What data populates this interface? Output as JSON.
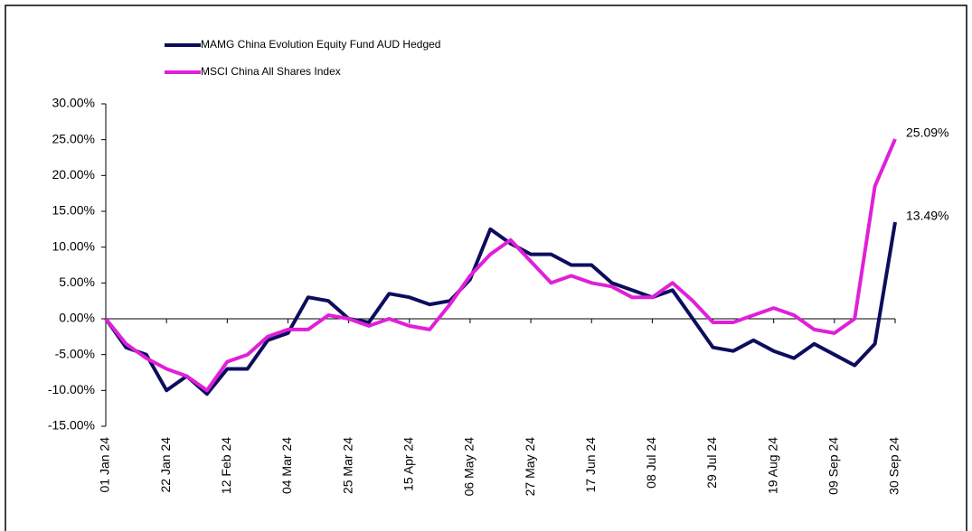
{
  "chart_data": {
    "type": "line",
    "x": [
      "01 Jan 24",
      "08 Jan 24",
      "15 Jan 24",
      "22 Jan 24",
      "29 Jan 24",
      "05 Feb 24",
      "12 Feb 24",
      "19 Feb 24",
      "26 Feb 24",
      "04 Mar 24",
      "11 Mar 24",
      "18 Mar 24",
      "25 Mar 24",
      "01 Apr 24",
      "08 Apr 24",
      "15 Apr 24",
      "22 Apr 24",
      "29 Apr 24",
      "06 May 24",
      "13 May 24",
      "20 May 24",
      "27 May 24",
      "03 Jun 24",
      "10 Jun 24",
      "17 Jun 24",
      "24 Jun 24",
      "01 Jul 24",
      "08 Jul 24",
      "15 Jul 24",
      "22 Jul 24",
      "29 Jul 24",
      "05 Aug 24",
      "12 Aug 24",
      "19 Aug 24",
      "26 Aug 24",
      "02 Sep 24",
      "09 Sep 24",
      "16 Sep 24",
      "23 Sep 24",
      "30 Sep 24"
    ],
    "series": [
      {
        "name": "MAMG China Evolution Equity Fund AUD Hedged",
        "color": "#0d0d5e",
        "values": [
          0,
          -4,
          -5,
          -10,
          -8,
          -10.5,
          -7,
          -7,
          -3,
          -2,
          3,
          2.5,
          0,
          -0.5,
          3.5,
          3,
          2,
          2.5,
          5.5,
          12.5,
          10.5,
          9,
          9,
          7.5,
          7.5,
          5,
          4,
          3,
          4,
          0,
          -4,
          -4.5,
          -3,
          -4.5,
          -5.5,
          -3.5,
          -5,
          -6.5,
          -3.5,
          13.49
        ],
        "value_labels": [
          null,
          null,
          null,
          null,
          null,
          null,
          null,
          null,
          null,
          null,
          null,
          null,
          null,
          null,
          null,
          null,
          null,
          null,
          null,
          null,
          null,
          null,
          null,
          null,
          null,
          null,
          null,
          null,
          null,
          null,
          null,
          null,
          null,
          null,
          null,
          null,
          null,
          null,
          null,
          "13.49%"
        ]
      },
      {
        "name": "MSCI China All Shares Index",
        "color": "#e020d8",
        "values": [
          0,
          -3.5,
          -5.5,
          -7,
          -8,
          -10,
          -6,
          -5,
          -2.5,
          -1.5,
          -1.5,
          0.5,
          0,
          -1,
          0,
          -1,
          -1.5,
          2,
          6,
          9,
          11,
          8,
          5,
          6,
          5,
          4.5,
          3,
          3,
          5,
          2.5,
          -0.5,
          -0.5,
          0.5,
          1.5,
          0.5,
          -1.5,
          -2,
          0,
          18.5,
          25.09
        ],
        "value_labels": [
          null,
          null,
          null,
          null,
          null,
          null,
          null,
          null,
          null,
          null,
          null,
          null,
          null,
          null,
          null,
          null,
          null,
          null,
          null,
          null,
          null,
          null,
          null,
          null,
          null,
          null,
          null,
          null,
          null,
          null,
          null,
          null,
          null,
          null,
          null,
          null,
          null,
          null,
          null,
          "25.09%"
        ]
      }
    ],
    "ylim": [
      -15,
      30
    ],
    "yticks": [
      {
        "value": -15,
        "label": "-15.00%"
      },
      {
        "value": -10,
        "label": "-10.00%"
      },
      {
        "value": -5,
        "label": "-5.00%"
      },
      {
        "value": 0,
        "label": "0.00%"
      },
      {
        "value": 5,
        "label": "5.00%"
      },
      {
        "value": 10,
        "label": "10.00%"
      },
      {
        "value": 15,
        "label": "15.00%"
      },
      {
        "value": 20,
        "label": "20.00%"
      },
      {
        "value": 25,
        "label": "25.00%"
      },
      {
        "value": 30,
        "label": "30.00%"
      }
    ],
    "xticks": [
      "01 Jan 24",
      "22 Jan 24",
      "12 Feb 24",
      "04 Mar 24",
      "25 Mar 24",
      "15 Apr 24",
      "06 May 24",
      "27 May 24",
      "17 Jun 24",
      "08 Jul 24",
      "29 Jul 24",
      "19 Aug 24",
      "09 Sep 24",
      "30 Sep 24"
    ],
    "legend": "top-left"
  }
}
